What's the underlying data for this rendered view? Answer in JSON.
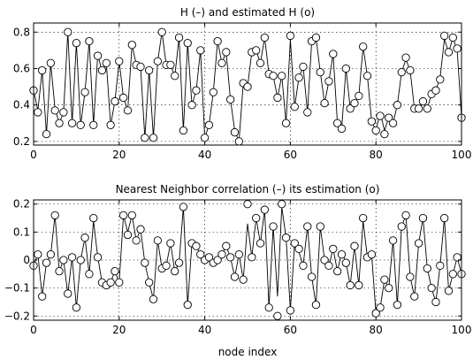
{
  "chart_data": [
    {
      "type": "line",
      "title": "H (–) and estimated H (o)",
      "xlabel": "",
      "ylabel": "",
      "xlim": [
        0,
        100
      ],
      "ylim": [
        0.18,
        0.85
      ],
      "xticks": [
        0,
        20,
        40,
        60,
        80,
        100
      ],
      "yticks": [
        0.2,
        0.4,
        0.6,
        0.8
      ],
      "ytick_labels": [
        "0.2",
        "0.4",
        "0.6",
        "0.8"
      ],
      "grid": true,
      "series": [
        {
          "style": "line",
          "x": [
            0,
            1,
            2,
            3,
            4,
            5,
            6,
            7,
            8,
            9,
            10,
            11,
            12,
            13,
            14,
            15,
            16,
            17,
            18,
            19,
            20,
            21,
            22,
            23,
            24,
            25,
            26,
            27,
            28,
            29,
            30,
            31,
            32,
            33,
            34,
            35,
            36,
            37,
            38,
            39,
            40,
            41,
            42,
            43,
            44,
            45,
            46,
            47,
            48,
            49,
            50,
            51,
            52,
            53,
            54,
            55,
            56,
            57,
            58,
            59,
            60,
            61,
            62,
            63,
            64,
            65,
            66,
            67,
            68,
            69,
            70,
            71,
            72,
            73,
            74,
            75,
            76,
            77,
            78,
            79,
            80,
            81,
            82,
            83,
            84,
            85,
            86,
            87,
            88,
            89,
            90,
            91,
            92,
            93,
            94,
            95,
            96,
            97,
            98,
            99,
            100
          ],
          "y": [
            0.48,
            0.37,
            0.59,
            0.24,
            0.63,
            0.38,
            0.3,
            0.36,
            0.8,
            0.3,
            0.74,
            0.29,
            0.47,
            0.75,
            0.29,
            0.68,
            0.58,
            0.63,
            0.29,
            0.42,
            0.64,
            0.44,
            0.37,
            0.73,
            0.62,
            0.61,
            0.22,
            0.59,
            0.22,
            0.64,
            0.8,
            0.62,
            0.62,
            0.56,
            0.77,
            0.26,
            0.74,
            0.4,
            0.48,
            0.7,
            0.22,
            0.29,
            0.47,
            0.75,
            0.63,
            0.69,
            0.43,
            0.26,
            0.2,
            0.52,
            0.5,
            0.69,
            0.7,
            0.63,
            0.77,
            0.57,
            0.56,
            0.44,
            0.56,
            0.3,
            0.76,
            0.39,
            0.55,
            0.61,
            0.36,
            0.75,
            0.77,
            0.58,
            0.41,
            0.53,
            0.68,
            0.3,
            0.27,
            0.6,
            0.38,
            0.41,
            0.45,
            0.72,
            0.56,
            0.31,
            0.26,
            0.36,
            0.26,
            0.33,
            0.3,
            0.4,
            0.58,
            0.65,
            0.59,
            0.38,
            0.38,
            0.41,
            0.38,
            0.46,
            0.48,
            0.55,
            0.76,
            0.69,
            0.77,
            0.7,
            0.33
          ]
        },
        {
          "style": "markers",
          "x": [
            0,
            1,
            2,
            3,
            4,
            5,
            6,
            7,
            8,
            9,
            10,
            11,
            12,
            13,
            14,
            15,
            16,
            17,
            18,
            19,
            20,
            21,
            22,
            23,
            24,
            25,
            26,
            27,
            28,
            29,
            30,
            31,
            32,
            33,
            34,
            35,
            36,
            37,
            38,
            39,
            40,
            41,
            42,
            43,
            44,
            45,
            46,
            47,
            48,
            49,
            50,
            51,
            52,
            53,
            54,
            55,
            56,
            57,
            58,
            59,
            60,
            61,
            62,
            63,
            64,
            65,
            66,
            67,
            68,
            69,
            70,
            71,
            72,
            73,
            74,
            75,
            76,
            77,
            78,
            79,
            80,
            81,
            82,
            83,
            84,
            85,
            86,
            87,
            88,
            89,
            90,
            91,
            92,
            93,
            94,
            95,
            96,
            97,
            98,
            99,
            100
          ],
          "y": [
            0.48,
            0.36,
            0.59,
            0.24,
            0.63,
            0.37,
            0.3,
            0.36,
            0.8,
            0.3,
            0.74,
            0.29,
            0.47,
            0.75,
            0.29,
            0.67,
            0.59,
            0.63,
            0.29,
            0.42,
            0.64,
            0.44,
            0.37,
            0.73,
            0.62,
            0.61,
            0.22,
            0.59,
            0.22,
            0.64,
            0.8,
            0.62,
            0.62,
            0.56,
            0.77,
            0.26,
            0.74,
            0.4,
            0.48,
            0.7,
            0.22,
            0.29,
            0.47,
            0.75,
            0.63,
            0.69,
            0.43,
            0.25,
            0.2,
            0.52,
            0.5,
            0.69,
            0.7,
            0.63,
            0.77,
            0.57,
            0.56,
            0.44,
            0.56,
            0.3,
            0.78,
            0.39,
            0.55,
            0.61,
            0.36,
            0.75,
            0.77,
            0.58,
            0.41,
            0.53,
            0.68,
            0.3,
            0.27,
            0.6,
            0.38,
            0.41,
            0.45,
            0.72,
            0.56,
            0.31,
            0.26,
            0.34,
            0.24,
            0.33,
            0.3,
            0.4,
            0.58,
            0.66,
            0.59,
            0.38,
            0.38,
            0.42,
            0.38,
            0.46,
            0.48,
            0.54,
            0.78,
            0.69,
            0.77,
            0.71,
            0.33
          ]
        }
      ]
    },
    {
      "type": "line",
      "title": "Nearest Neighbor correlation (–) its estimation (o)",
      "xlabel": "node index",
      "ylabel": "",
      "xlim": [
        0,
        100
      ],
      "ylim": [
        -0.215,
        0.215
      ],
      "xticks": [
        0,
        20,
        40,
        60,
        80,
        100
      ],
      "yticks": [
        -0.2,
        -0.1,
        0,
        0.1,
        0.2
      ],
      "ytick_labels": [
        "−0.2",
        "−0.1",
        "0",
        "0.1",
        "0.2"
      ],
      "grid": true,
      "series": [
        {
          "style": "line",
          "x": [
            0,
            1,
            2,
            3,
            4,
            5,
            6,
            7,
            8,
            9,
            10,
            11,
            12,
            13,
            14,
            15,
            16,
            17,
            18,
            19,
            20,
            21,
            22,
            23,
            24,
            25,
            26,
            27,
            28,
            29,
            30,
            31,
            32,
            33,
            34,
            35,
            36,
            37,
            38,
            39,
            40,
            41,
            42,
            43,
            44,
            45,
            46,
            47,
            48,
            49,
            50,
            51,
            52,
            53,
            54,
            55,
            56,
            57,
            58,
            59,
            60,
            61,
            62,
            63,
            64,
            65,
            66,
            67,
            68,
            69,
            70,
            71,
            72,
            73,
            74,
            75,
            76,
            77,
            78,
            79,
            80,
            81,
            82,
            83,
            84,
            85,
            86,
            87,
            88,
            89,
            90,
            91,
            92,
            93,
            94,
            95,
            96,
            97,
            98,
            99,
            100
          ],
          "y": [
            -0.02,
            0.02,
            -0.13,
            -0.01,
            0.02,
            0.16,
            -0.04,
            0.0,
            -0.12,
            0.01,
            -0.17,
            0.0,
            0.08,
            -0.05,
            0.14,
            0.01,
            -0.08,
            -0.08,
            -0.08,
            -0.04,
            -0.08,
            0.16,
            0.1,
            0.16,
            0.07,
            0.11,
            -0.01,
            -0.08,
            -0.14,
            0.07,
            -0.03,
            -0.02,
            0.06,
            -0.04,
            -0.01,
            0.19,
            -0.16,
            0.06,
            0.05,
            0.02,
            0.0,
            0.01,
            -0.01,
            0.0,
            0.02,
            0.05,
            0.01,
            -0.06,
            0.02,
            -0.07,
            0.13,
            0.01,
            0.15,
            0.06,
            0.18,
            -0.17,
            0.12,
            -0.13,
            0.19,
            0.08,
            -0.18,
            0.06,
            0.03,
            -0.02,
            0.12,
            -0.06,
            -0.16,
            0.12,
            0.0,
            -0.02,
            0.04,
            -0.04,
            0.03,
            -0.01,
            -0.09,
            0.05,
            -0.09,
            0.14,
            0.01,
            0.02,
            -0.19,
            -0.17,
            -0.07,
            -0.1,
            0.07,
            -0.16,
            0.12,
            0.16,
            -0.06,
            -0.13,
            0.06,
            0.15,
            -0.03,
            -0.1,
            -0.15,
            -0.02,
            0.15,
            -0.11,
            -0.05,
            0.01,
            -0.05
          ],
          "_note_skip": false
        },
        {
          "style": "markers",
          "x": [
            0,
            1,
            2,
            3,
            4,
            5,
            6,
            7,
            8,
            9,
            10,
            11,
            12,
            13,
            14,
            15,
            16,
            17,
            18,
            19,
            20,
            21,
            22,
            23,
            24,
            25,
            26,
            27,
            28,
            29,
            30,
            31,
            32,
            33,
            34,
            35,
            36,
            37,
            38,
            39,
            40,
            41,
            42,
            43,
            44,
            45,
            46,
            47,
            48,
            49,
            50,
            51,
            52,
            53,
            54,
            55,
            56,
            57,
            58,
            59,
            60,
            61,
            62,
            63,
            64,
            65,
            66,
            67,
            68,
            69,
            70,
            71,
            72,
            73,
            74,
            75,
            76,
            77,
            78,
            79,
            80,
            81,
            82,
            83,
            84,
            85,
            86,
            87,
            88,
            89,
            90,
            91,
            92,
            93,
            94,
            95,
            96,
            97,
            98,
            99,
            100
          ],
          "y": [
            -0.02,
            0.02,
            -0.13,
            -0.01,
            0.02,
            0.16,
            -0.04,
            0.0,
            -0.12,
            0.01,
            -0.17,
            0.0,
            0.08,
            -0.05,
            0.15,
            0.01,
            -0.08,
            -0.09,
            -0.08,
            -0.04,
            -0.08,
            0.16,
            0.09,
            0.16,
            0.07,
            0.11,
            -0.01,
            -0.08,
            -0.14,
            0.07,
            -0.03,
            -0.02,
            0.06,
            -0.04,
            -0.01,
            0.19,
            -0.16,
            0.06,
            0.05,
            0.02,
            0.0,
            0.01,
            -0.01,
            0.0,
            0.02,
            0.05,
            0.01,
            -0.06,
            0.02,
            -0.07,
            0.2,
            0.01,
            0.15,
            0.06,
            0.18,
            -0.17,
            0.12,
            -0.2,
            0.2,
            0.08,
            -0.18,
            0.06,
            0.04,
            -0.02,
            0.12,
            -0.06,
            -0.16,
            0.12,
            0.0,
            -0.02,
            0.04,
            -0.04,
            0.02,
            -0.01,
            -0.09,
            0.05,
            -0.09,
            0.15,
            0.01,
            0.02,
            -0.19,
            -0.17,
            -0.07,
            -0.1,
            0.07,
            -0.16,
            0.12,
            0.16,
            -0.06,
            -0.13,
            0.06,
            0.15,
            -0.03,
            -0.1,
            -0.15,
            -0.02,
            0.15,
            -0.11,
            -0.05,
            0.01,
            -0.05
          ]
        }
      ]
    }
  ]
}
